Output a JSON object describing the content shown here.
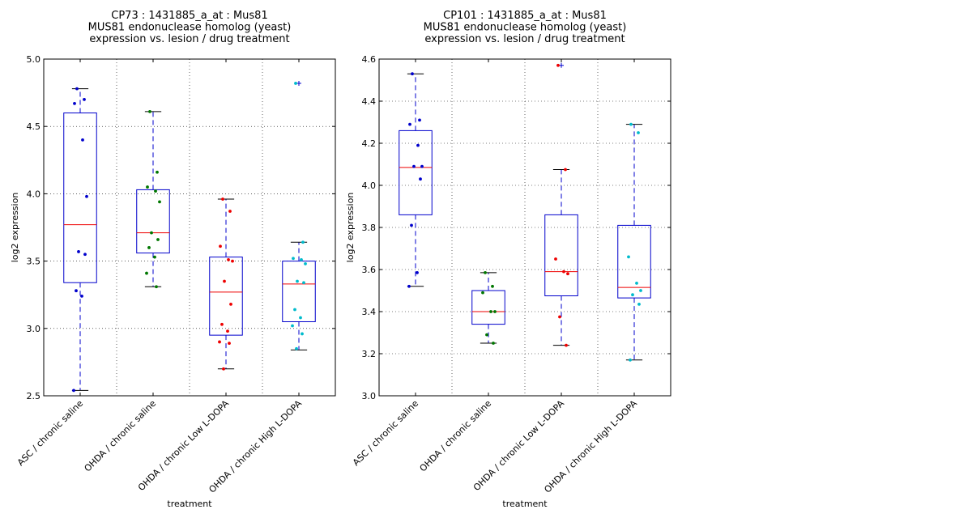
{
  "chart_data": [
    {
      "type": "box",
      "title": [
        "CP73 : 1431885_a_at : Mus81",
        "MUS81 endonuclease homolog (yeast)",
        "expression vs. lesion / drug treatment"
      ],
      "xlabel": "treatment",
      "ylabel": "log2 expression",
      "ylim": [
        2.5,
        5.0
      ],
      "yticks": [
        "2.5",
        "3.0",
        "3.5",
        "4.0",
        "4.5",
        "5.0"
      ],
      "grid": true,
      "categories": [
        "ASC / chronic saline",
        "OHDA / chronic saline",
        "OHDA / chronic Low L-DOPA",
        "OHDA / chronic High L-DOPA"
      ],
      "colors": [
        "#0000cc",
        "#007700",
        "#ee0000",
        "#00bbcc"
      ],
      "boxes": [
        {
          "whislo": 2.54,
          "q1": 3.34,
          "med": 3.77,
          "q3": 4.6,
          "whishi": 4.78,
          "fliers": []
        },
        {
          "whislo": 3.31,
          "q1": 3.56,
          "med": 3.71,
          "q3": 4.03,
          "whishi": 4.61,
          "fliers": []
        },
        {
          "whislo": 2.7,
          "q1": 2.95,
          "med": 3.27,
          "q3": 3.53,
          "whishi": 3.96,
          "fliers": []
        },
        {
          "whislo": 2.84,
          "q1": 3.05,
          "med": 3.33,
          "q3": 3.5,
          "whishi": 3.64,
          "fliers": [
            4.82
          ]
        }
      ],
      "points": [
        [
          4.78,
          4.7,
          4.67,
          4.4,
          3.98,
          3.57,
          3.55,
          3.28,
          3.24,
          2.54
        ],
        [
          4.61,
          4.16,
          4.05,
          4.02,
          3.94,
          3.71,
          3.66,
          3.6,
          3.53,
          3.41,
          3.31
        ],
        [
          3.96,
          3.87,
          3.61,
          3.51,
          3.5,
          3.35,
          3.18,
          3.03,
          2.98,
          2.9,
          2.89,
          2.7
        ],
        [
          4.82,
          3.64,
          3.52,
          3.51,
          3.48,
          3.35,
          3.34,
          3.14,
          3.08,
          3.02,
          2.96,
          2.85
        ]
      ]
    },
    {
      "type": "box",
      "title": [
        "CP101 : 1431885_a_at : Mus81",
        "MUS81 endonuclease homolog (yeast)",
        "expression vs. lesion / drug treatment"
      ],
      "xlabel": "treatment",
      "ylabel": "log2 expression",
      "ylim": [
        3.0,
        4.6
      ],
      "yticks": [
        "3.0",
        "3.2",
        "3.4",
        "3.6",
        "3.8",
        "4.0",
        "4.2",
        "4.4",
        "4.6"
      ],
      "grid": true,
      "categories": [
        "ASC / chronic saline",
        "OHDA / chronic saline",
        "OHDA / chronic Low L-DOPA",
        "OHDA / chronic High L-DOPA"
      ],
      "colors": [
        "#0000cc",
        "#007700",
        "#ee0000",
        "#00bbcc"
      ],
      "boxes": [
        {
          "whislo": 3.52,
          "q1": 3.86,
          "med": 4.085,
          "q3": 4.26,
          "whishi": 4.53,
          "fliers": []
        },
        {
          "whislo": 3.25,
          "q1": 3.34,
          "med": 3.4,
          "q3": 3.5,
          "whishi": 3.585,
          "fliers": []
        },
        {
          "whislo": 3.24,
          "q1": 3.475,
          "med": 3.59,
          "q3": 3.86,
          "whishi": 4.075,
          "fliers": [
            4.57
          ]
        },
        {
          "whislo": 3.17,
          "q1": 3.465,
          "med": 3.515,
          "q3": 3.81,
          "whishi": 4.29,
          "fliers": []
        }
      ],
      "points": [
        [
          4.53,
          4.31,
          4.29,
          4.19,
          4.09,
          4.09,
          4.03,
          3.81,
          3.585,
          3.52
        ],
        [
          3.585,
          3.52,
          3.49,
          3.4,
          3.4,
          3.29,
          3.25
        ],
        [
          4.57,
          4.075,
          3.65,
          3.59,
          3.58,
          3.375,
          3.24
        ],
        [
          4.29,
          4.25,
          3.66,
          3.535,
          3.5,
          3.48,
          3.435,
          3.17
        ]
      ]
    }
  ]
}
